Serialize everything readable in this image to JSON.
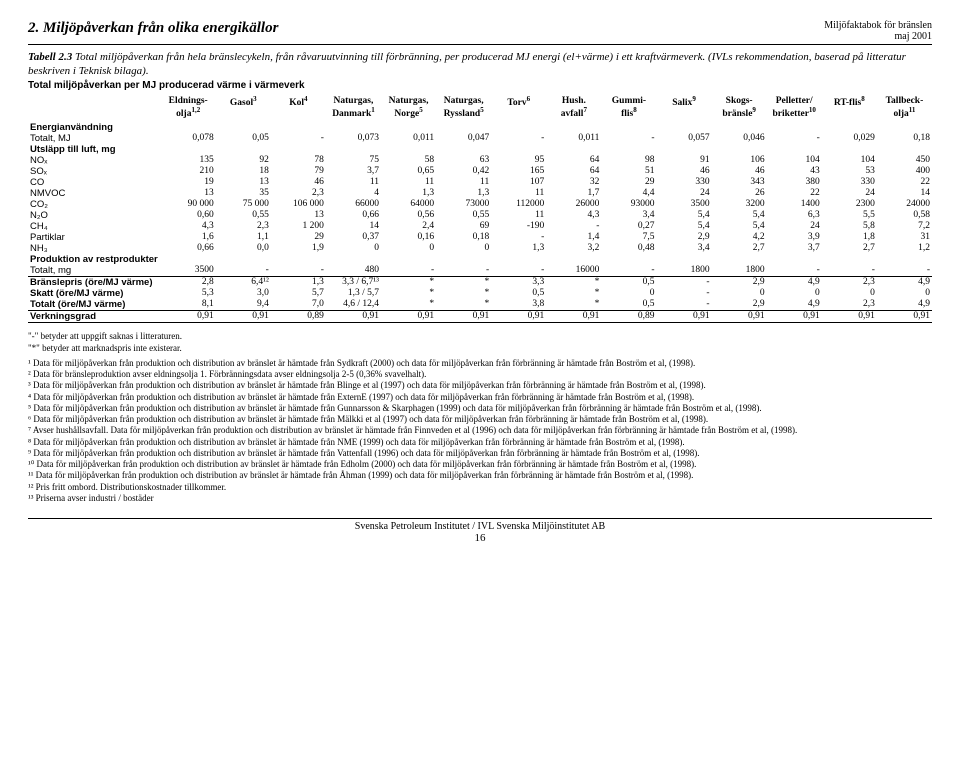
{
  "header": {
    "section_title": "2. Miljöpåverkan från olika energikällor",
    "right_line1": "Miljöfaktabok för bränslen",
    "right_line2": "maj 2001"
  },
  "caption": {
    "bold": "Tabell 2.3",
    "rest": " Total miljöpåverkan från hela bränslecykeln, från råvaruutvinning till förbränning, per producerad MJ energi (el+värme) i ett kraftvärmeverk. (IVLs rekommendation, baserad på litteratur beskriven i Teknisk bilaga).",
    "line2": "Total miljöpåverkan per MJ producerad värme i värmeverk"
  },
  "columns": [
    {
      "top": "",
      "bottom": ""
    },
    {
      "top": "Eldnings-",
      "bottom": "olja",
      "sup": "1,2"
    },
    {
      "top": "Gasol",
      "bottom": "",
      "sup": "3"
    },
    {
      "top": "Kol",
      "bottom": "",
      "sup": "4"
    },
    {
      "top": "Naturgas,",
      "bottom": "Danmark",
      "sup": "1"
    },
    {
      "top": "Naturgas,",
      "bottom": "Norge",
      "sup": "5"
    },
    {
      "top": "Naturgas,",
      "bottom": "Ryssland",
      "sup": "5"
    },
    {
      "top": "Torv",
      "bottom": "",
      "sup": "6"
    },
    {
      "top": "Hush.",
      "bottom": "avfall",
      "sup": "7"
    },
    {
      "top": "Gummi-",
      "bottom": "flis",
      "sup": "8"
    },
    {
      "top": "Salix",
      "bottom": "",
      "sup": "9"
    },
    {
      "top": "Skogs-",
      "bottom": "bränsle",
      "sup": "9"
    },
    {
      "top": "Pelletter/",
      "bottom": "briketter",
      "sup": "10"
    },
    {
      "top": "RT-flis",
      "bottom": "",
      "sup": "8"
    },
    {
      "top": "Tallbeck-",
      "bottom": "olja",
      "sup": "11"
    }
  ],
  "rows": [
    {
      "label": "Energianvändning",
      "bold": true,
      "cells": [
        "",
        "",
        "",
        "",
        "",
        "",
        "",
        "",
        "",
        "",
        "",
        "",
        "",
        ""
      ]
    },
    {
      "label": "Totalt, MJ",
      "cells": [
        "0,078",
        "0,05",
        "-",
        "0,073",
        "0,011",
        "0,047",
        "-",
        "0,011",
        "-",
        "0,057",
        "0,046",
        "-",
        "0,029",
        "0,18"
      ]
    },
    {
      "label": "Utsläpp till luft, mg",
      "bold": true,
      "cells": [
        "",
        "",
        "",
        "",
        "",
        "",
        "",
        "",
        "",
        "",
        "",
        "",
        "",
        ""
      ]
    },
    {
      "label": "NOₓ",
      "cells": [
        "135",
        "92",
        "78",
        "75",
        "58",
        "63",
        "95",
        "64",
        "98",
        "91",
        "106",
        "104",
        "104",
        "450"
      ]
    },
    {
      "label": "SOₓ",
      "cells": [
        "210",
        "18",
        "79",
        "3,7",
        "0,65",
        "0,42",
        "165",
        "64",
        "51",
        "46",
        "46",
        "43",
        "53",
        "400"
      ]
    },
    {
      "label": "CO",
      "cells": [
        "19",
        "13",
        "46",
        "11",
        "11",
        "11",
        "107",
        "32",
        "29",
        "330",
        "343",
        "380",
        "330",
        "22"
      ]
    },
    {
      "label": "NMVOC",
      "cells": [
        "13",
        "35",
        "2,3",
        "4",
        "1,3",
        "1,3",
        "11",
        "1,7",
        "4,4",
        "24",
        "26",
        "22",
        "24",
        "14"
      ]
    },
    {
      "label": "CO₂",
      "cells": [
        "90 000",
        "75 000",
        "106 000",
        "66000",
        "64000",
        "73000",
        "112000",
        "26000",
        "93000",
        "3500",
        "3200",
        "1400",
        "2300",
        "24000"
      ]
    },
    {
      "label": "N₂O",
      "cells": [
        "0,60",
        "0,55",
        "13",
        "0,66",
        "0,56",
        "0,55",
        "11",
        "4,3",
        "3,4",
        "5,4",
        "5,4",
        "6,3",
        "5,5",
        "0,58"
      ]
    },
    {
      "label": "CH₄",
      "cells": [
        "4,3",
        "2,3",
        "1 200",
        "14",
        "2,4",
        "69",
        "-190",
        "-",
        "0,27",
        "5,4",
        "5,4",
        "24",
        "5,8",
        "7,2"
      ]
    },
    {
      "label": "Partiklar",
      "cells": [
        "1,6",
        "1,1",
        "29",
        "0,37",
        "0,16",
        "0,18",
        "-",
        "1,4",
        "7,5",
        "2,9",
        "4,2",
        "3,9",
        "1,8",
        "31"
      ]
    },
    {
      "label": "NH₃",
      "cells": [
        "0,66",
        "0,0",
        "1,9",
        "0",
        "0",
        "0",
        "1,3",
        "3,2",
        "0,48",
        "3,4",
        "2,7",
        "3,7",
        "2,7",
        "1,2"
      ]
    },
    {
      "label": "Produktion av restprodukter",
      "bold": true,
      "cells": [
        "",
        "",
        "",
        "",
        "",
        "",
        "",
        "",
        "",
        "",
        "",
        "",
        "",
        ""
      ]
    },
    {
      "label": "Totalt, mg",
      "cells": [
        "3500",
        "-",
        "-",
        "480",
        "-",
        "-",
        "-",
        "16000",
        "-",
        "1800",
        "1800",
        "-",
        "-",
        "-"
      ]
    }
  ],
  "price_rows": [
    {
      "label": "Bränslepris (öre/MJ värme)",
      "cells": [
        "2,8",
        "6,4¹²",
        "1,3",
        "3,3 / 6,7¹³",
        "*",
        "*",
        "3,3",
        "*",
        "0,5",
        "-",
        "2,9",
        "4,9",
        "2,3",
        "4,9"
      ]
    },
    {
      "label": "Skatt (öre/MJ värme)",
      "cells": [
        "5,3",
        "3,0",
        "5,7",
        "1,3 / 5,7",
        "*",
        "*",
        "0,5",
        "*",
        "0",
        "-",
        "0",
        "0",
        "0",
        "0"
      ]
    },
    {
      "label": "Totalt (öre/MJ värme)",
      "cells": [
        "8,1",
        "9,4",
        "7,0",
        "4,6 / 12,4",
        "*",
        "*",
        "3,8",
        "*",
        "0,5",
        "-",
        "2,9",
        "4,9",
        "2,3",
        "4,9"
      ]
    }
  ],
  "eff_row": {
    "label": "Verkningsgrad",
    "cells": [
      "0,91",
      "0,91",
      "0,89",
      "0,91",
      "0,91",
      "0,91",
      "0,91",
      "0,91",
      "0,89",
      "0,91",
      "0,91",
      "0,91",
      "0,91",
      "0,91"
    ]
  },
  "legend": [
    "\"-\" betyder att uppgift saknas i litteraturen.",
    "\"*\" betyder att marknadspris inte existerar."
  ],
  "footnotes": [
    "¹ Data för miljöpåverkan från produktion och distribution av bränslet är hämtade från Sydkraft (2000) och data för miljöpåverkan från förbränning är hämtade från Boström et al, (1998).",
    "² Data för bränsleproduktion avser eldningsolja 1. Förbränningsdata avser eldningsolja 2-5 (0,36% svavelhalt).",
    "³ Data för miljöpåverkan från produktion och distribution av bränslet är hämtade från Blinge et al (1997) och data för miljöpåverkan från förbränning är hämtade från Boström et al, (1998).",
    "⁴ Data för miljöpåverkan från produktion och distribution av bränslet är hämtade från ExternE (1997) och data för miljöpåverkan från förbränning är hämtade från Boström et al, (1998).",
    "⁵ Data för miljöpåverkan från produktion och distribution av bränslet är hämtade från Gunnarsson & Skarphagen (1999) och data för miljöpåverkan från förbränning är hämtade från Boström et al, (1998).",
    "⁶ Data för miljöpåverkan från produktion och distribution av bränslet är hämtade från Mälkki et al (1997) och data för miljöpåverkan från förbränning är hämtade från Boström et al, (1998).",
    "⁷ Avser hushållsavfall. Data för miljöpåverkan från produktion och distribution av bränslet är hämtade från Finnveden et al (1996) och data för miljöpåverkan från förbränning är hämtade från Boström et al, (1998).",
    "⁸ Data för miljöpåverkan från produktion och distribution av bränslet är hämtade från NME (1999) och data för miljöpåverkan från förbränning är hämtade från Boström et al, (1998).",
    "⁹ Data för miljöpåverkan från produktion och distribution av bränslet är hämtade från Vattenfall (1996) och data för miljöpåverkan från förbränning är hämtade från Boström et al, (1998).",
    "¹⁰ Data för miljöpåverkan från produktion och distribution av bränslet är hämtade från Edholm (2000) och data för miljöpåverkan från förbränning är hämtade från Boström et al, (1998).",
    "¹¹ Data för miljöpåverkan från produktion och distribution av bränslet är hämtade från Åhman (1999) och data för miljöpåverkan från förbränning är hämtade från Boström et al, (1998).",
    "¹² Pris fritt ombord. Distributionskostnader tillkommer.",
    "¹³ Priserna avser industri / bostäder"
  ],
  "footer": {
    "line": "Svenska Petroleum Institutet / IVL Svenska Miljöinstitutet AB",
    "page": "16"
  }
}
